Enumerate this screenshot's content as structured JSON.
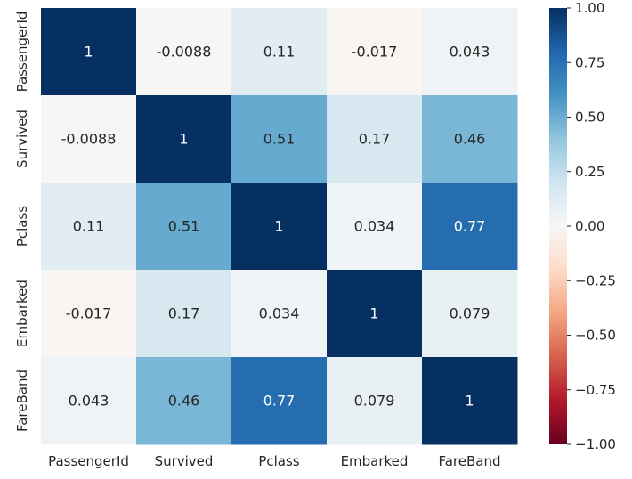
{
  "chart_data": {
    "type": "heatmap",
    "x_categories": [
      "PassengerId",
      "Survived",
      "Pclass",
      "Embarked",
      "FareBand"
    ],
    "y_categories": [
      "PassengerId",
      "Survived",
      "Pclass",
      "Embarked",
      "FareBand"
    ],
    "values": [
      [
        1,
        -0.0088,
        0.11,
        -0.017,
        0.043
      ],
      [
        -0.0088,
        1,
        0.51,
        0.17,
        0.46
      ],
      [
        0.11,
        0.51,
        1,
        0.034,
        0.77
      ],
      [
        -0.017,
        0.17,
        0.034,
        1,
        0.079
      ],
      [
        0.043,
        0.46,
        0.77,
        0.079,
        1
      ]
    ],
    "annotations": [
      [
        "1",
        "-0.0088",
        "0.11",
        "-0.017",
        "0.043"
      ],
      [
        "-0.0088",
        "1",
        "0.51",
        "0.17",
        "0.46"
      ],
      [
        "0.11",
        "0.51",
        "1",
        "0.034",
        "0.77"
      ],
      [
        "-0.017",
        "0.17",
        "0.034",
        "1",
        "0.079"
      ],
      [
        "0.043",
        "0.46",
        "0.77",
        "0.079",
        "1"
      ]
    ],
    "colormap": "RdBu",
    "colorbar": {
      "vmin": -1.0,
      "vmax": 1.0,
      "ticks": [
        1.0,
        0.75,
        0.5,
        0.25,
        0.0,
        -0.25,
        -0.5,
        -0.75,
        -1.0
      ],
      "tick_labels": [
        "1.00",
        "0.75",
        "0.50",
        "0.25",
        "0.00",
        "−0.25",
        "−0.50",
        "−0.75",
        "−1.00"
      ]
    },
    "title": "",
    "xlabel": "",
    "ylabel": ""
  }
}
